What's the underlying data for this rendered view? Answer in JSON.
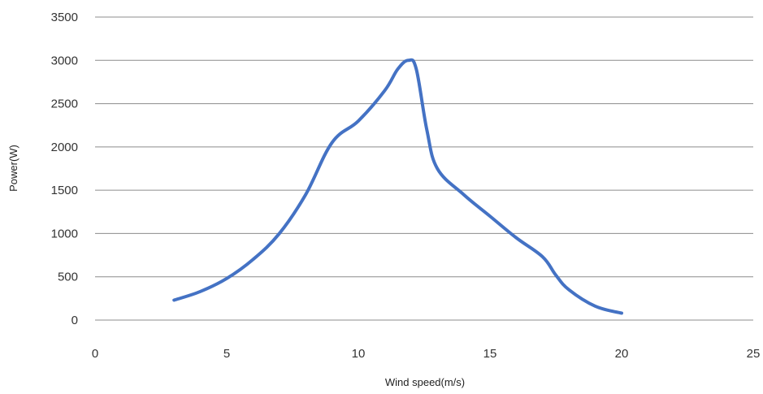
{
  "chart_data": {
    "type": "line",
    "title": "",
    "xlabel": "Wind speed(m/s)",
    "ylabel": "Power(W)",
    "xlim": [
      0,
      25
    ],
    "ylim": [
      0,
      3500
    ],
    "xticks": [
      0,
      5,
      10,
      15,
      20,
      25
    ],
    "yticks": [
      0,
      500,
      1000,
      1500,
      2000,
      2500,
      3000,
      3500
    ],
    "grid": "horizontal",
    "legend": "none",
    "series": [
      {
        "color": "#4472c4",
        "x": [
          3,
          4,
          5,
          6,
          7,
          8,
          9,
          10,
          11,
          11.5,
          11.9,
          12.2,
          12.6,
          13,
          14,
          15,
          16,
          17,
          17.5,
          18,
          19,
          20
        ],
        "y": [
          230,
          330,
          480,
          700,
          1000,
          1450,
          2050,
          2300,
          2650,
          2900,
          3000,
          2900,
          2200,
          1750,
          1450,
          1200,
          950,
          730,
          520,
          350,
          160,
          80
        ]
      }
    ]
  }
}
